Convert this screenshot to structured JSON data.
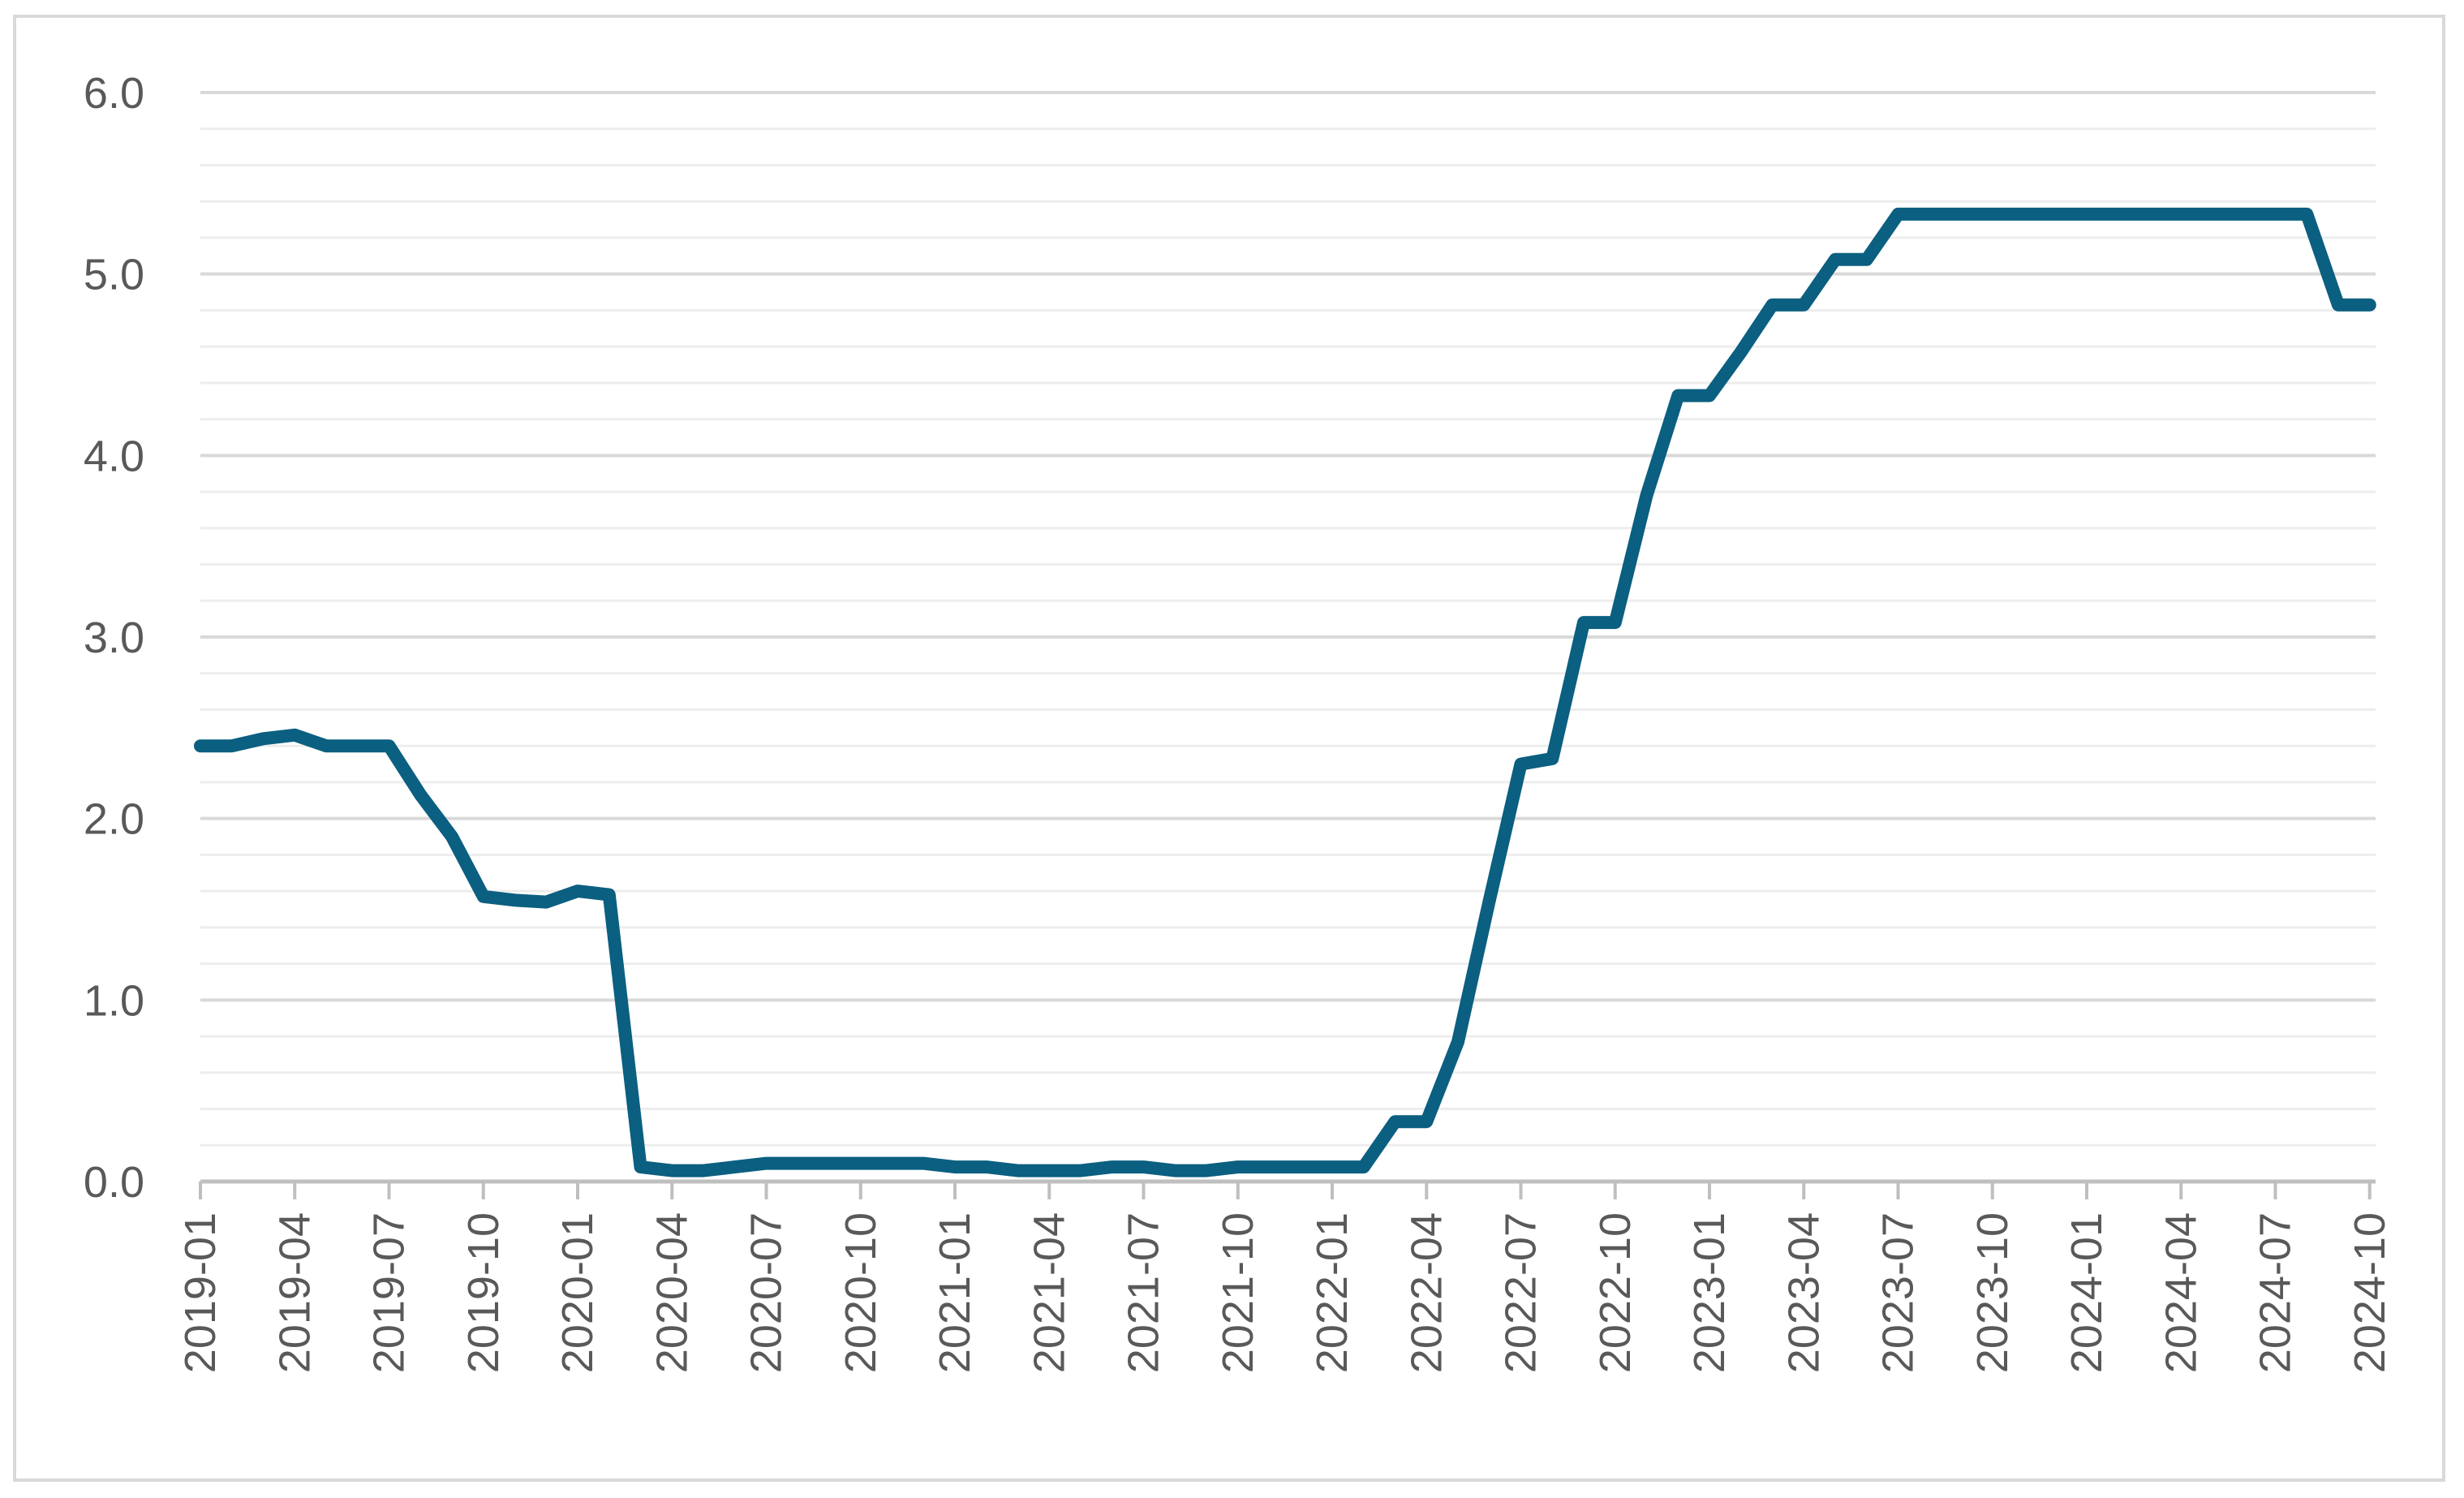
{
  "chart_data": {
    "type": "line",
    "title": "",
    "xlabel": "",
    "ylabel": "",
    "ylim": [
      0,
      6
    ],
    "y_ticks": [
      "0.0",
      "1.0",
      "2.0",
      "3.0",
      "4.0",
      "5.0",
      "6.0"
    ],
    "grid": {
      "major": true,
      "minor": true
    },
    "legend": "none",
    "colors": {
      "series": "#0b5f80",
      "grid_major": "#d9d9d9",
      "grid_minor": "#ededed",
      "axis": "#bfbfbf",
      "tick_text": "#595959",
      "frame": "#d9d9d9"
    },
    "x_tick_labels": [
      "2019-01",
      "2019-04",
      "2019-07",
      "2019-10",
      "2020-01",
      "2020-04",
      "2020-07",
      "2020-10",
      "2021-01",
      "2021-04",
      "2021-07",
      "2021-10",
      "2022-01",
      "2022-04",
      "2022-07",
      "2022-10",
      "2023-01",
      "2023-04",
      "2023-07",
      "2023-10",
      "2024-01",
      "2024-04",
      "2024-07",
      "2024-10"
    ],
    "x": [
      "2019-01",
      "2019-02",
      "2019-03",
      "2019-04",
      "2019-05",
      "2019-06",
      "2019-07",
      "2019-08",
      "2019-09",
      "2019-10",
      "2019-11",
      "2019-12",
      "2020-01",
      "2020-02",
      "2020-03",
      "2020-04",
      "2020-05",
      "2020-06",
      "2020-07",
      "2020-08",
      "2020-09",
      "2020-10",
      "2020-11",
      "2020-12",
      "2021-01",
      "2021-02",
      "2021-03",
      "2021-04",
      "2021-05",
      "2021-06",
      "2021-07",
      "2021-08",
      "2021-09",
      "2021-10",
      "2021-11",
      "2021-12",
      "2022-01",
      "2022-02",
      "2022-03",
      "2022-04",
      "2022-05",
      "2022-06",
      "2022-07",
      "2022-08",
      "2022-09",
      "2022-10",
      "2022-11",
      "2022-12",
      "2023-01",
      "2023-02",
      "2023-03",
      "2023-04",
      "2023-05",
      "2023-06",
      "2023-07",
      "2023-08",
      "2023-09",
      "2023-10",
      "2023-11",
      "2023-12",
      "2024-01",
      "2024-02",
      "2024-03",
      "2024-04",
      "2024-05",
      "2024-06",
      "2024-07",
      "2024-08",
      "2024-09",
      "2024-10"
    ],
    "series": [
      {
        "values": [
          2.4,
          2.4,
          2.44,
          2.46,
          2.4,
          2.4,
          2.4,
          2.13,
          1.9,
          1.57,
          1.55,
          1.54,
          1.6,
          1.58,
          0.08,
          0.06,
          0.06,
          0.08,
          0.1,
          0.1,
          0.1,
          0.1,
          0.1,
          0.1,
          0.08,
          0.08,
          0.06,
          0.06,
          0.06,
          0.08,
          0.08,
          0.06,
          0.06,
          0.08,
          0.08,
          0.08,
          0.08,
          0.08,
          0.33,
          0.33,
          0.77,
          1.55,
          2.3,
          2.33,
          3.08,
          3.08,
          3.78,
          4.33,
          4.33,
          4.57,
          4.83,
          4.83,
          5.08,
          5.08,
          5.33,
          5.33,
          5.33,
          5.33,
          5.33,
          5.33,
          5.33,
          5.33,
          5.33,
          5.33,
          5.33,
          5.33,
          5.33,
          5.33,
          4.83,
          4.83
        ]
      }
    ]
  }
}
